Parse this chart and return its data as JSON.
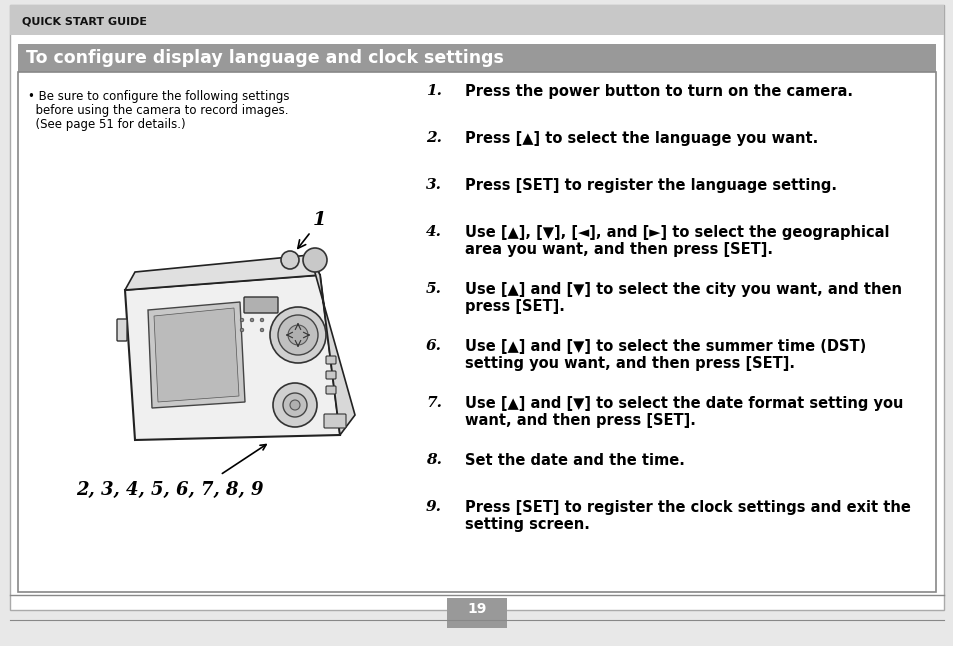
{
  "bg_color": "#e8e8e8",
  "page_bg": "#ffffff",
  "header_bg": "#c8c8c8",
  "header_text": "QUICK START GUIDE",
  "title_bg": "#999999",
  "title_text": "To configure display language and clock settings",
  "title_text_color": "#ffffff",
  "body_bg": "#ffffff",
  "bullet_line1": "• Be sure to configure the following settings",
  "bullet_line2": "  before using the camera to record images.",
  "bullet_line3": "  (See page 51 for details.)",
  "label_1": "1",
  "label_2345": "2, 3, 4, 5, 6, 7, 8, 9",
  "steps": [
    {
      "num": "1.",
      "text": "Press the power button to turn on the camera."
    },
    {
      "num": "2.",
      "text": "Press [▲] to select the language you want."
    },
    {
      "num": "3.",
      "text": "Press [SET] to register the language setting."
    },
    {
      "num": "4.",
      "text": "Use [▲], [▼], [◄], and [►] to select the geographical\narea you want, and then press [SET]."
    },
    {
      "num": "5.",
      "text": "Use [▲] and [▼] to select the city you want, and then\npress [SET]."
    },
    {
      "num": "6.",
      "text": "Use [▲] and [▼] to select the summer time (DST)\nsetting you want, and then press [SET]."
    },
    {
      "num": "7.",
      "text": "Use [▲] and [▼] to select the date format setting you\nwant, and then press [SET]."
    },
    {
      "num": "8.",
      "text": "Set the date and the time."
    },
    {
      "num": "9.",
      "text": "Press [SET] to register the clock settings and exit the\nsetting screen."
    }
  ],
  "page_num": "19",
  "footer_bg": "#999999",
  "footer_text_color": "#ffffff"
}
